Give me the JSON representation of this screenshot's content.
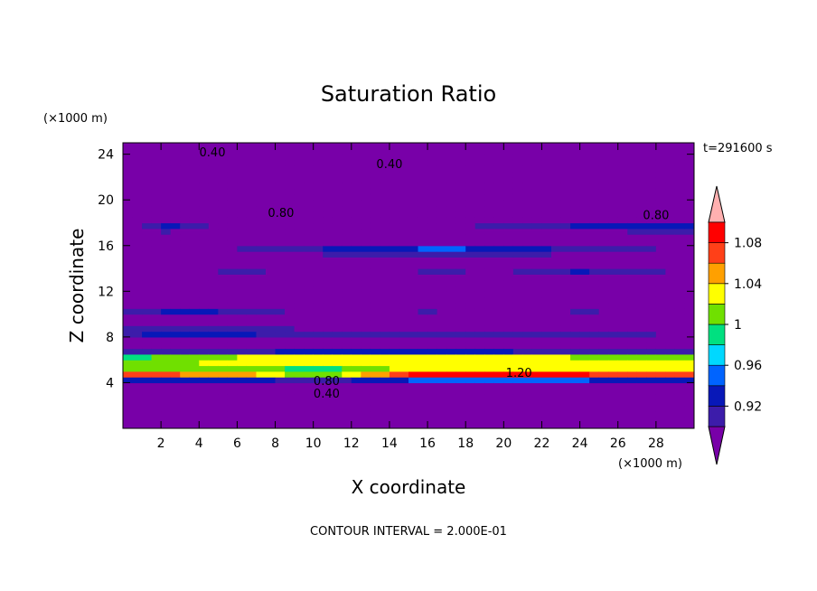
{
  "chart_data": {
    "type": "heatmap",
    "title": "Saturation Ratio",
    "xlabel": "X coordinate",
    "ylabel": "Z coordinate",
    "x_unit": "(×1000 m)",
    "y_unit": "(×1000 m)",
    "time_label": "t=291600 s",
    "footer": "CONTOUR INTERVAL = 2.000E-01",
    "xlim": [
      0,
      30
    ],
    "ylim": [
      0,
      25
    ],
    "x_ticks": [
      2,
      4,
      6,
      8,
      10,
      12,
      14,
      16,
      18,
      20,
      22,
      24,
      26,
      28
    ],
    "y_ticks": [
      4,
      8,
      12,
      16,
      20,
      24
    ],
    "colorbar": {
      "levels": [
        0.9,
        0.92,
        0.94,
        0.96,
        0.98,
        1.0,
        1.02,
        1.04,
        1.06,
        1.08,
        1.1
      ],
      "labels": [
        "0.92",
        "0.96",
        "1",
        "1.04",
        "1.08"
      ],
      "label_values": [
        0.92,
        0.96,
        1.0,
        1.04,
        1.08
      ],
      "colors": [
        "#7800a8",
        "#3c1caa",
        "#0818b8",
        "#0064ff",
        "#00d8ff",
        "#00e080",
        "#70e000",
        "#ffff00",
        "#ffa000",
        "#ff4018",
        "#ff0000",
        "#ffb0b0"
      ],
      "extend": "both"
    },
    "contour_labels": [
      {
        "text": "0.40",
        "x": 4.7,
        "z": 23.8
      },
      {
        "text": "0.40",
        "x": 14.0,
        "z": 22.8
      },
      {
        "text": "0.80",
        "x": 8.3,
        "z": 18.5
      },
      {
        "text": "0.80",
        "x": 28.0,
        "z": 18.3
      },
      {
        "text": "1.20",
        "x": 20.8,
        "z": 4.5
      },
      {
        "text": "0.80",
        "x": 10.7,
        "z": 3.8
      },
      {
        "text": "0.40",
        "x": 10.7,
        "z": 2.7
      }
    ],
    "field": {
      "x_step": 0.5,
      "z_step": 0.5,
      "background": 0.86,
      "bands": [
        {
          "z": 20.0,
          "width": 0.4,
          "amp": 0.03,
          "points": [
            [
              0,
              0.0
            ],
            [
              30,
              0.0
            ]
          ]
        },
        {
          "z": 17.6,
          "width": 0.45,
          "amp": 0.085,
          "points": [
            [
              0,
              0.0
            ],
            [
              2,
              0.9
            ],
            [
              4,
              0.7
            ],
            [
              6,
              0.0
            ],
            [
              10,
              0.0
            ],
            [
              14,
              0.0
            ],
            [
              20,
              0.7
            ],
            [
              24,
              0.8
            ],
            [
              28,
              0.9
            ],
            [
              30,
              1.0
            ]
          ]
        },
        {
          "z": 15.6,
          "width": 0.5,
          "amp": 0.09,
          "points": [
            [
              0,
              0.0
            ],
            [
              6,
              0.5
            ],
            [
              10,
              0.7
            ],
            [
              14,
              0.95
            ],
            [
              17,
              1.0
            ],
            [
              20,
              0.9
            ],
            [
              24,
              0.6
            ],
            [
              28,
              0.5
            ],
            [
              30,
              0.3
            ]
          ]
        },
        {
          "z": 13.8,
          "width": 0.45,
          "amp": 0.09,
          "points": [
            [
              0,
              0.0
            ],
            [
              3,
              0.3
            ],
            [
              6,
              0.5
            ],
            [
              9,
              0.4
            ],
            [
              12,
              0.2
            ],
            [
              16,
              0.5
            ],
            [
              20,
              0.4
            ],
            [
              24,
              0.7
            ],
            [
              28,
              0.5
            ],
            [
              30,
              0.3
            ]
          ]
        },
        {
          "z": 12.4,
          "width": 0.5,
          "amp": 0.06,
          "points": [
            [
              0,
              0.3
            ],
            [
              5,
              0.5
            ],
            [
              10,
              0.6
            ],
            [
              15,
              0.6
            ],
            [
              20,
              0.5
            ],
            [
              25,
              0.5
            ],
            [
              30,
              0.4
            ]
          ]
        },
        {
          "z": 10.2,
          "width": 0.6,
          "amp": 0.085,
          "points": [
            [
              0,
              0.6
            ],
            [
              4,
              0.8
            ],
            [
              8,
              0.5
            ],
            [
              12,
              0.3
            ],
            [
              16,
              0.5
            ],
            [
              20,
              0.3
            ],
            [
              24,
              0.5
            ],
            [
              28,
              0.4
            ],
            [
              30,
              0.3
            ]
          ]
        },
        {
          "z": 8.4,
          "width": 0.6,
          "amp": 0.085,
          "points": [
            [
              0,
              0.7
            ],
            [
              4,
              0.9
            ],
            [
              8,
              0.7
            ],
            [
              12,
              0.5
            ],
            [
              16,
              0.6
            ],
            [
              20,
              0.5
            ],
            [
              24,
              0.6
            ],
            [
              28,
              0.5
            ],
            [
              30,
              0.5
            ]
          ]
        },
        {
          "z": 6.0,
          "width": 0.7,
          "amp": 0.19,
          "points": [
            [
              0,
              0.8
            ],
            [
              4,
              0.9
            ],
            [
              8,
              1.0
            ],
            [
              12,
              1.0
            ],
            [
              16,
              1.0
            ],
            [
              20,
              1.0
            ],
            [
              24,
              0.95
            ],
            [
              28,
              0.9
            ],
            [
              30,
              0.9
            ]
          ]
        },
        {
          "z": 4.8,
          "width": 0.55,
          "amp": 0.23,
          "points": [
            [
              0,
              0.9
            ],
            [
              6,
              0.8
            ],
            [
              10,
              0.6
            ],
            [
              12,
              0.7
            ],
            [
              16,
              1.0
            ],
            [
              22,
              1.0
            ],
            [
              26,
              0.9
            ],
            [
              30,
              0.9
            ]
          ]
        }
      ]
    }
  }
}
